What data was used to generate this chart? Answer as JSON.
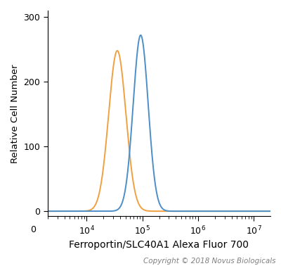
{
  "xlabel": "Ferroportin/SLC40A1 Alexa Fluor 700",
  "ylabel": "Relative Cell Number",
  "copyright": "Copyright © 2018 Novus Biologicals",
  "xlim_log_min": 3.3,
  "xlim_log_max": 7.3,
  "ylim_min": -8,
  "ylim_max": 310,
  "yticks": [
    0,
    100,
    200,
    300
  ],
  "orange_peak_log": 4.55,
  "orange_peak_height": 248,
  "orange_sigma_log": 0.155,
  "blue_peak_log": 4.97,
  "blue_peak_height": 272,
  "blue_sigma_log": 0.135,
  "blue_color": "#4B8EC8",
  "orange_color": "#F0A040",
  "background_color": "#FFFFFF",
  "line_width": 1.4,
  "xlabel_fontsize": 10,
  "ylabel_fontsize": 9.5,
  "tick_fontsize": 9,
  "copyright_fontsize": 7.5
}
